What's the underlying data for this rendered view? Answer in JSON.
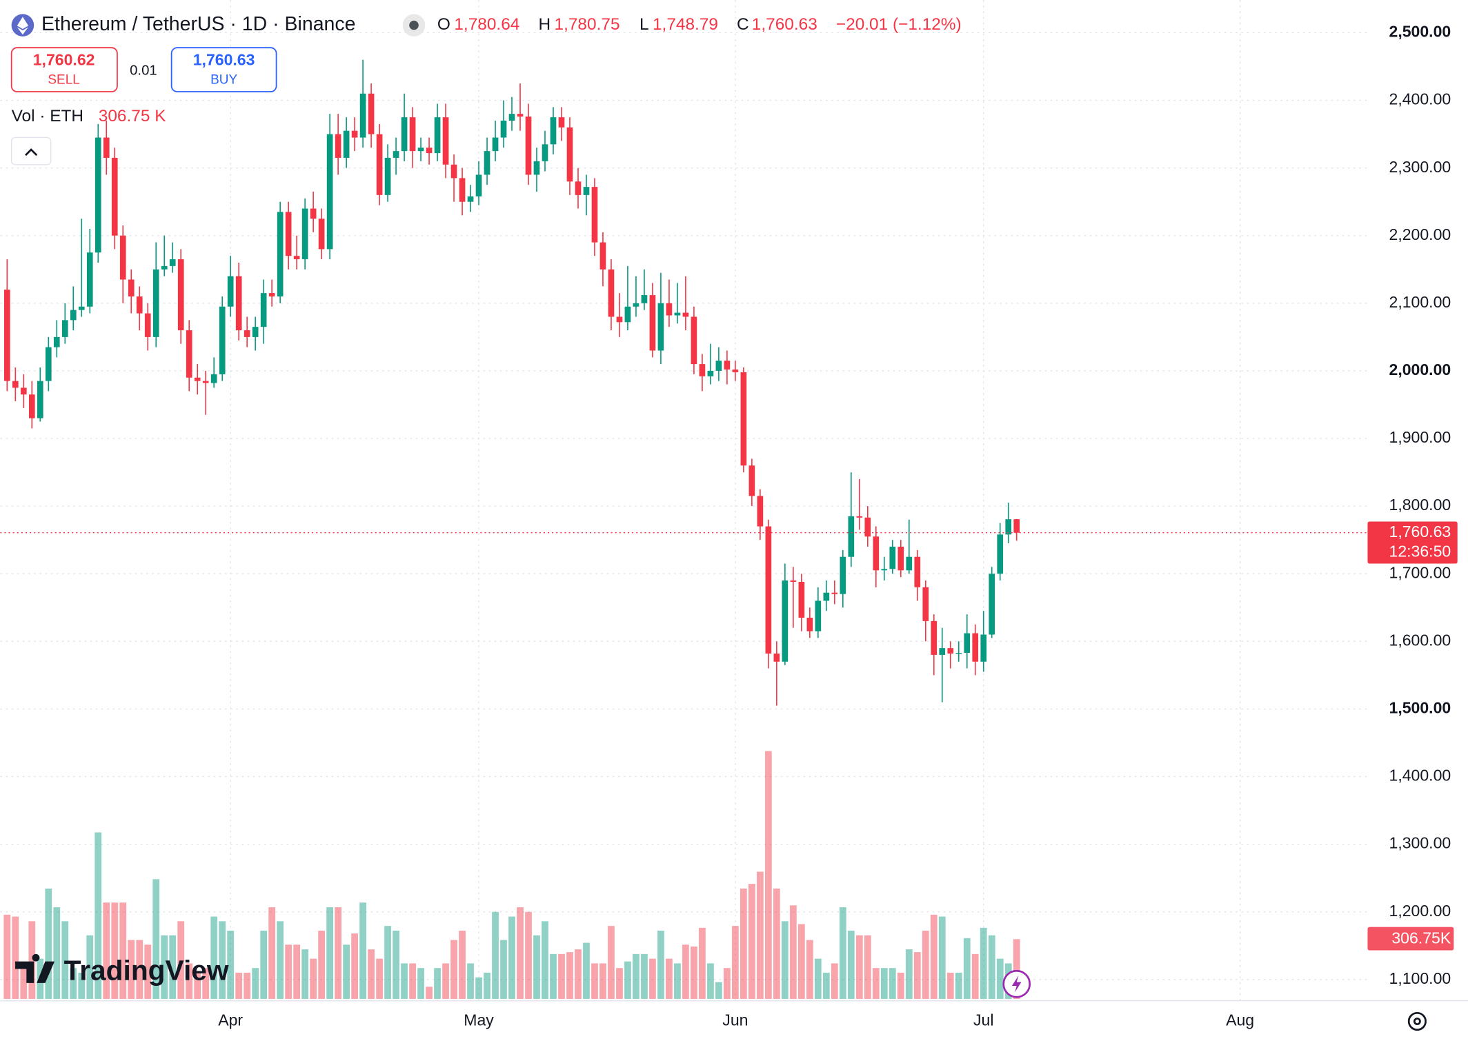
{
  "header": {
    "title": "Ethereum / TetherUS · 1D · Binance",
    "ohlc": [
      {
        "key": "O",
        "value": "1,780.64"
      },
      {
        "key": "H",
        "value": "1,780.75"
      },
      {
        "key": "L",
        "value": "1,748.79"
      },
      {
        "key": "C",
        "value": "1,760.63"
      }
    ],
    "change": "−20.01 (−1.12%)",
    "sell": {
      "price": "1,760.62",
      "label": "SELL"
    },
    "spread": "0.01",
    "buy": {
      "price": "1,760.63",
      "label": "BUY"
    },
    "volume_legend": {
      "label": "Vol · ETH",
      "value": "306.75 K"
    },
    "logo": "TradingView"
  },
  "chart_data": {
    "type": "candlestick",
    "open": [
      2120,
      1985,
      1975,
      1965,
      1930,
      1985,
      2035,
      2050,
      2075,
      2090,
      2095,
      2175,
      2345,
      2315,
      2200,
      2135,
      2110,
      2085,
      2050,
      2150,
      2155,
      2165,
      2060,
      1990,
      1985,
      1982,
      1995,
      2095,
      2140,
      2060,
      2050,
      2065,
      2115,
      2110,
      2235,
      2170,
      2165,
      2240,
      2225,
      2180,
      2350,
      2315,
      2355,
      2345,
      2410,
      2350,
      2260,
      2315,
      2325,
      2375,
      2325,
      2330,
      2322,
      2375,
      2305,
      2285,
      2250,
      2258,
      2290,
      2325,
      2345,
      2370,
      2380,
      2376,
      2290,
      2310,
      2335,
      2375,
      2360,
      2280,
      2260,
      2272,
      2190,
      2150,
      2080,
      2072,
      2095,
      2100,
      2112,
      2030,
      2100,
      2082,
      2086,
      2080,
      2010,
      1992,
      2000,
      2015,
      2002,
      1998,
      1860,
      1815,
      1770,
      1582,
      1570,
      1690,
      1688,
      1635,
      1615,
      1660,
      1672,
      1670,
      1725,
      1785,
      1783,
      1755,
      1705,
      1707,
      1740,
      1705,
      1725,
      1680,
      1630,
      1580,
      1590,
      1582,
      1583,
      1612,
      1570,
      1610,
      1700,
      1758,
      1780.64
    ],
    "high": [
      2165,
      2005,
      1995,
      1985,
      2005,
      2050,
      2075,
      2100,
      2125,
      2225,
      2210,
      2365,
      2370,
      2330,
      2215,
      2150,
      2125,
      2100,
      2190,
      2200,
      2190,
      2180,
      2075,
      2010,
      2000,
      2020,
      2110,
      2170,
      2160,
      2080,
      2080,
      2135,
      2135,
      2250,
      2250,
      2200,
      2255,
      2265,
      2240,
      2380,
      2380,
      2375,
      2375,
      2460,
      2425,
      2365,
      2335,
      2345,
      2410,
      2390,
      2345,
      2345,
      2395,
      2395,
      2320,
      2300,
      2275,
      2310,
      2345,
      2370,
      2400,
      2405,
      2425,
      2395,
      2330,
      2355,
      2390,
      2390,
      2375,
      2300,
      2290,
      2285,
      2205,
      2165,
      2115,
      2155,
      2140,
      2150,
      2130,
      2145,
      2135,
      2130,
      2140,
      2095,
      2025,
      2040,
      2035,
      2030,
      2015,
      2005,
      1870,
      1825,
      1780,
      1600,
      1715,
      1710,
      1700,
      1650,
      1680,
      1690,
      1690,
      1735,
      1850,
      1840,
      1800,
      1770,
      1725,
      1750,
      1750,
      1780,
      1735,
      1690,
      1640,
      1620,
      1600,
      1600,
      1640,
      1625,
      1645,
      1710,
      1775,
      1805,
      1780.75
    ],
    "low": [
      1970,
      1955,
      1945,
      1915,
      1925,
      1970,
      2020,
      2040,
      2060,
      2080,
      2085,
      2160,
      2290,
      2180,
      2100,
      2085,
      2060,
      2030,
      2035,
      2140,
      2145,
      2040,
      1970,
      1965,
      1935,
      1975,
      1985,
      2080,
      2045,
      2035,
      2030,
      2040,
      2095,
      2100,
      2150,
      2150,
      2150,
      2205,
      2165,
      2165,
      2290,
      2300,
      2325,
      2330,
      2330,
      2245,
      2250,
      2290,
      2310,
      2300,
      2310,
      2305,
      2310,
      2285,
      2250,
      2230,
      2235,
      2245,
      2275,
      2310,
      2330,
      2355,
      2355,
      2275,
      2265,
      2295,
      2320,
      2340,
      2260,
      2240,
      2230,
      2170,
      2125,
      2060,
      2050,
      2060,
      2080,
      2090,
      2020,
      2010,
      2065,
      2070,
      2060,
      1995,
      1970,
      1980,
      1985,
      1980,
      1985,
      1850,
      1800,
      1750,
      1560,
      1505,
      1565,
      1620,
      1615,
      1605,
      1605,
      1645,
      1655,
      1650,
      1710,
      1765,
      1740,
      1680,
      1690,
      1700,
      1695,
      1700,
      1660,
      1600,
      1550,
      1510,
      1560,
      1570,
      1560,
      1550,
      1555,
      1605,
      1690,
      1745,
      1748.79
    ],
    "close": [
      1985,
      1975,
      1965,
      1930,
      1985,
      2035,
      2050,
      2075,
      2090,
      2095,
      2175,
      2345,
      2315,
      2200,
      2135,
      2110,
      2085,
      2050,
      2150,
      2155,
      2165,
      2060,
      1990,
      1985,
      1982,
      1995,
      2095,
      2140,
      2060,
      2050,
      2065,
      2115,
      2110,
      2235,
      2170,
      2165,
      2240,
      2225,
      2180,
      2350,
      2315,
      2355,
      2345,
      2410,
      2350,
      2260,
      2315,
      2325,
      2375,
      2325,
      2330,
      2322,
      2375,
      2305,
      2285,
      2250,
      2258,
      2290,
      2325,
      2345,
      2370,
      2380,
      2376,
      2290,
      2310,
      2335,
      2375,
      2360,
      2280,
      2260,
      2272,
      2190,
      2150,
      2080,
      2072,
      2095,
      2100,
      2112,
      2030,
      2100,
      2082,
      2086,
      2080,
      2010,
      1992,
      2000,
      2015,
      2002,
      1998,
      1860,
      1815,
      1770,
      1582,
      1570,
      1690,
      1688,
      1635,
      1615,
      1660,
      1672,
      1670,
      1725,
      1785,
      1783,
      1755,
      1705,
      1707,
      1740,
      1705,
      1725,
      1680,
      1630,
      1580,
      1590,
      1582,
      1583,
      1612,
      1570,
      1610,
      1700,
      1758,
      1780.64,
      1760.63
    ],
    "volume": [
      432000,
      422400,
      182400,
      398400,
      206400,
      566400,
      470400,
      398400,
      158400,
      134400,
      326400,
      854400,
      494400,
      494400,
      494400,
      302400,
      302400,
      278400,
      614400,
      326400,
      326400,
      398400,
      182400,
      134400,
      158400,
      422400,
      398400,
      350400,
      134400,
      134400,
      158400,
      350400,
      470400,
      398400,
      278400,
      278400,
      254400,
      206400,
      350400,
      470400,
      470400,
      278400,
      336000,
      494400,
      254400,
      206400,
      374400,
      350400,
      182400,
      182400,
      158400,
      62400,
      158400,
      182400,
      302400,
      350400,
      182400,
      110400,
      134400,
      446400,
      302400,
      422400,
      470400,
      446400,
      326400,
      398400,
      230400,
      230400,
      240000,
      254400,
      288000,
      182400,
      182400,
      374400,
      158400,
      192000,
      230400,
      230400,
      206400,
      350400,
      206400,
      182400,
      278400,
      268800,
      364800,
      182400,
      86400,
      158400,
      374400,
      566400,
      590400,
      652800,
      1272000,
      566400,
      398400,
      480000,
      384000,
      302400,
      206400,
      134400,
      182400,
      470400,
      350400,
      326400,
      326400,
      158400,
      158400,
      158400,
      134400,
      254400,
      240000,
      350400,
      432000,
      422400,
      134400,
      134400,
      312000,
      230400,
      364800,
      326400,
      206400,
      182400,
      306750
    ],
    "up_color": "#089981",
    "down_color": "#f23645",
    "xlim": [
      -0.83,
      164.3
    ],
    "xticks": [
      {
        "value": 27,
        "label": "Apr"
      },
      {
        "value": 57,
        "label": "May"
      },
      {
        "value": 88,
        "label": "Jun"
      },
      {
        "value": 118,
        "label": "Jul"
      },
      {
        "value": 149,
        "label": "Aug"
      }
    ],
    "ylim": [
      1068.5,
      2548.4
    ],
    "yticks": [
      {
        "value": 2500,
        "label": "2,500.00"
      },
      {
        "value": 2400,
        "label": "2,400.00"
      },
      {
        "value": 2300,
        "label": "2,300.00"
      },
      {
        "value": 2200,
        "label": "2,200.00"
      },
      {
        "value": 2100,
        "label": "2,100.00"
      },
      {
        "value": 2000,
        "label": "2,000.00"
      },
      {
        "value": 1900,
        "label": "1,900.00"
      },
      {
        "value": 1800,
        "label": "1,800.00"
      },
      {
        "value": 1700,
        "label": "1,700.00"
      },
      {
        "value": 1600,
        "label": "1,600.00"
      },
      {
        "value": 1500,
        "label": "1,500.00"
      },
      {
        "value": 1400,
        "label": "1,400.00"
      },
      {
        "value": 1300,
        "label": "1,300.00"
      },
      {
        "value": 1200,
        "label": "1,200.00"
      },
      {
        "value": 1100,
        "label": "1,100.00"
      }
    ],
    "grid": true,
    "last_price_label": "1,760.63",
    "countdown": "12:36:50",
    "last_volume_label": "306.75K"
  }
}
